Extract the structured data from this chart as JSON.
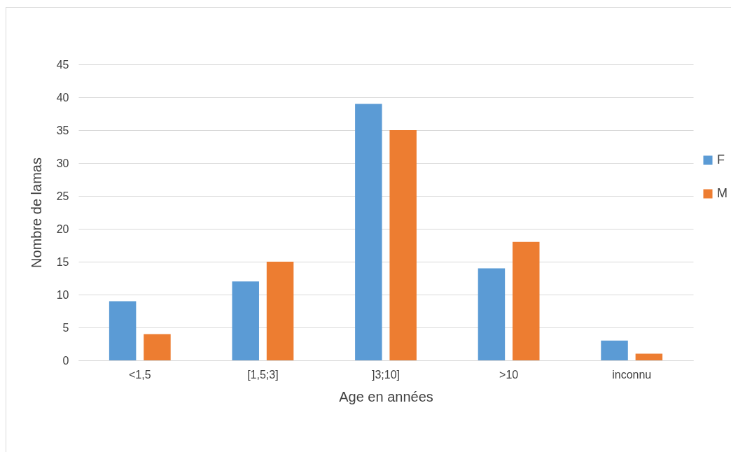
{
  "chart_data": {
    "type": "bar",
    "xlabel": "Age en années",
    "ylabel": "Nombre de lamas",
    "categories": [
      "<1,5",
      "[1,5;3]",
      "]3;10]",
      ">10",
      "inconnu"
    ],
    "series": [
      {
        "name": "F",
        "color": "#5b9bd5",
        "values": [
          9,
          12,
          39,
          14,
          3
        ]
      },
      {
        "name": "M",
        "color": "#ed7d31",
        "values": [
          4,
          15,
          35,
          18,
          1
        ]
      }
    ],
    "ylim": [
      0,
      45
    ],
    "yticks": [
      0,
      5,
      10,
      15,
      20,
      25,
      30,
      35,
      40,
      45
    ],
    "grid": "y",
    "legend": "right"
  }
}
